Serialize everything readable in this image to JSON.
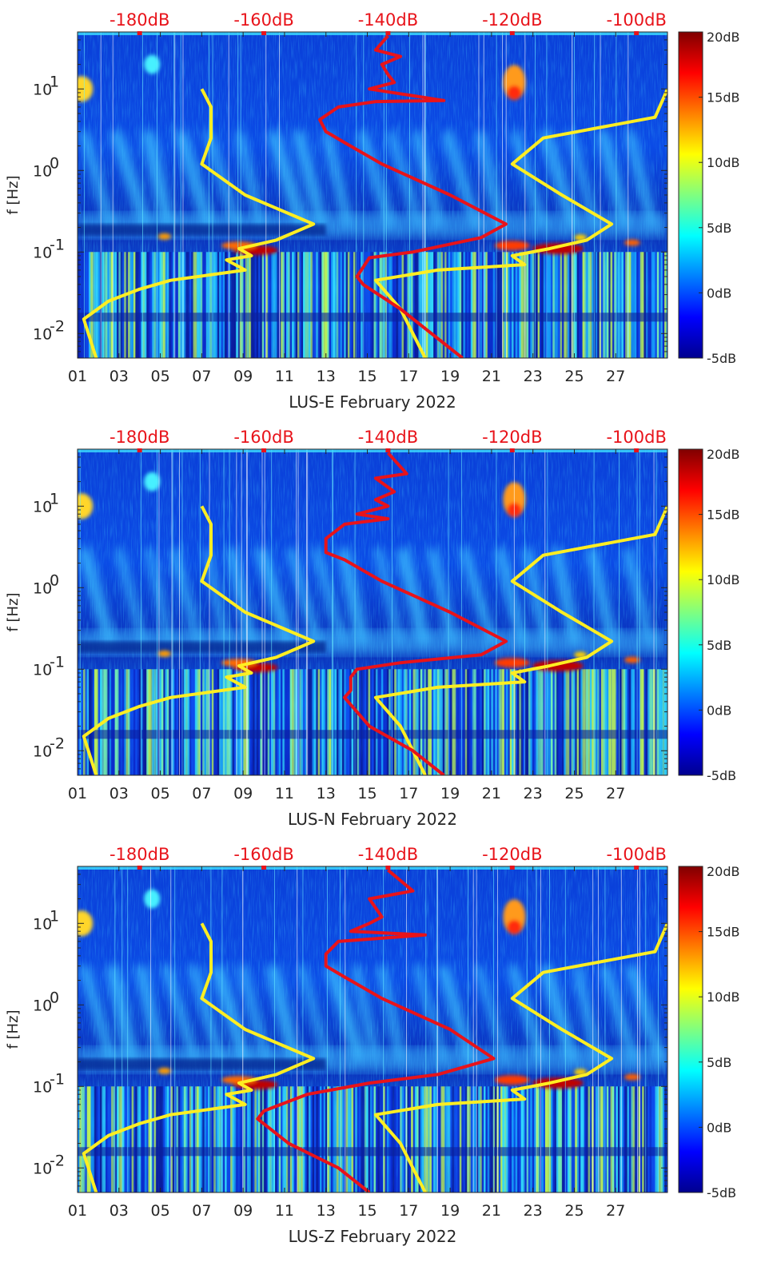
{
  "chart_data": [
    {
      "type": "heatmap",
      "station": "LUS-E",
      "xlabel": "LUS-E February 2022",
      "ylabel": "f [Hz]",
      "x_ticks": [
        "01",
        "03",
        "05",
        "07",
        "09",
        "11",
        "13",
        "15",
        "17",
        "19",
        "21",
        "23",
        "25",
        "27"
      ],
      "x_range_days": [
        1,
        29.5
      ],
      "y_scale": "log",
      "y_ticks": [
        {
          "value": 0.01,
          "base": "10",
          "exp": "-2"
        },
        {
          "value": 0.1,
          "base": "10",
          "exp": "-1"
        },
        {
          "value": 1,
          "base": "10",
          "exp": "0"
        },
        {
          "value": 10,
          "base": "10",
          "exp": "1"
        }
      ],
      "y_range_hz": [
        0.005,
        50
      ],
      "top_axis": {
        "labels": [
          "-180dB",
          "-160dB",
          "-140dB",
          "-120dB",
          "-100dB"
        ],
        "values_db": [
          -180,
          -160,
          -140,
          -120,
          -100
        ],
        "range_db": [
          -190,
          -95
        ]
      },
      "colorbar": {
        "labels": [
          "20dB",
          "15dB",
          "10dB",
          "5dB",
          "0dB",
          "-5dB"
        ],
        "values": [
          20,
          15,
          10,
          5,
          0,
          -5
        ],
        "range": [
          -5,
          20
        ],
        "colormap": "jet"
      },
      "series": [
        {
          "color": "#ffee22",
          "points": [
            [
              -170,
              10
            ],
            [
              -168.5,
              6
            ],
            [
              -168.5,
              2.5
            ],
            [
              -170,
              1.2
            ],
            [
              -163,
              0.5
            ],
            [
              -152,
              0.22
            ],
            [
              -158,
              0.14
            ],
            [
              -164,
              0.11
            ],
            [
              -162,
              0.09
            ],
            [
              -166,
              0.08
            ],
            [
              -163,
              0.06
            ],
            [
              -175,
              0.045
            ],
            [
              -180,
              0.035
            ],
            [
              -185,
              0.025
            ],
            [
              -189,
              0.015
            ],
            [
              -187,
              0.005
            ]
          ]
        },
        {
          "color": "#ffee22",
          "points": [
            [
              -95,
              10
            ],
            [
              -97,
              4.5
            ],
            [
              -115,
              2.5
            ],
            [
              -120,
              1.2
            ],
            [
              -112,
              0.5
            ],
            [
              -104,
              0.22
            ],
            [
              -108,
              0.14
            ],
            [
              -114,
              0.11
            ],
            [
              -120,
              0.09
            ],
            [
              -118,
              0.07
            ],
            [
              -132,
              0.06
            ],
            [
              -142,
              0.045
            ],
            [
              -138,
              0.02
            ],
            [
              -134,
              0.005
            ]
          ]
        },
        {
          "color": "#e8131a",
          "points": [
            [
              -140,
              45
            ],
            [
              -142,
              30
            ],
            [
              -138,
              25
            ],
            [
              -141,
              20
            ],
            [
              -140,
              15
            ],
            [
              -139,
              12
            ],
            [
              -143,
              10
            ],
            [
              -131,
              7.2
            ],
            [
              -142,
              7
            ],
            [
              -148,
              6
            ],
            [
              -151,
              4.2
            ],
            [
              -150,
              3
            ],
            [
              -147,
              2.2
            ],
            [
              -141,
              1.2
            ],
            [
              -130,
              0.5
            ],
            [
              -121,
              0.22
            ],
            [
              -125,
              0.15
            ],
            [
              -136,
              0.1
            ],
            [
              -143,
              0.085
            ],
            [
              -144,
              0.065
            ],
            [
              -145,
              0.05
            ],
            [
              -144,
              0.04
            ],
            [
              -138,
              0.02
            ],
            [
              -133,
              0.01
            ],
            [
              -128,
              0.005
            ]
          ]
        }
      ]
    },
    {
      "type": "heatmap",
      "station": "LUS-N",
      "xlabel": "LUS-N February 2022",
      "ylabel": "f [Hz]",
      "x_ticks": [
        "01",
        "03",
        "05",
        "07",
        "09",
        "11",
        "13",
        "15",
        "17",
        "19",
        "21",
        "23",
        "25",
        "27"
      ],
      "x_range_days": [
        1,
        29.5
      ],
      "y_scale": "log",
      "y_ticks": [
        {
          "value": 0.01,
          "base": "10",
          "exp": "-2"
        },
        {
          "value": 0.1,
          "base": "10",
          "exp": "-1"
        },
        {
          "value": 1,
          "base": "10",
          "exp": "0"
        },
        {
          "value": 10,
          "base": "10",
          "exp": "1"
        }
      ],
      "y_range_hz": [
        0.005,
        50
      ],
      "top_axis": {
        "labels": [
          "-180dB",
          "-160dB",
          "-140dB",
          "-120dB",
          "-100dB"
        ],
        "values_db": [
          -180,
          -160,
          -140,
          -120,
          -100
        ],
        "range_db": [
          -190,
          -95
        ]
      },
      "colorbar": {
        "labels": [
          "20dB",
          "15dB",
          "10dB",
          "5dB",
          "0dB",
          "-5dB"
        ],
        "values": [
          20,
          15,
          10,
          5,
          0,
          -5
        ],
        "range": [
          -5,
          20
        ],
        "colormap": "jet"
      },
      "series": [
        {
          "color": "#ffee22",
          "points": [
            [
              -170,
              10
            ],
            [
              -168.5,
              6
            ],
            [
              -168.5,
              2.5
            ],
            [
              -170,
              1.2
            ],
            [
              -163,
              0.5
            ],
            [
              -152,
              0.22
            ],
            [
              -158,
              0.14
            ],
            [
              -164,
              0.11
            ],
            [
              -162,
              0.09
            ],
            [
              -166,
              0.08
            ],
            [
              -163,
              0.06
            ],
            [
              -175,
              0.045
            ],
            [
              -180,
              0.035
            ],
            [
              -185,
              0.025
            ],
            [
              -189,
              0.015
            ],
            [
              -187,
              0.005
            ]
          ]
        },
        {
          "color": "#ffee22",
          "points": [
            [
              -95,
              10
            ],
            [
              -97,
              4.5
            ],
            [
              -115,
              2.5
            ],
            [
              -120,
              1.2
            ],
            [
              -112,
              0.5
            ],
            [
              -104,
              0.22
            ],
            [
              -108,
              0.14
            ],
            [
              -114,
              0.11
            ],
            [
              -120,
              0.09
            ],
            [
              -118,
              0.07
            ],
            [
              -132,
              0.06
            ],
            [
              -142,
              0.045
            ],
            [
              -138,
              0.02
            ],
            [
              -134,
              0.005
            ]
          ]
        },
        {
          "color": "#e8131a",
          "points": [
            [
              -140,
              45
            ],
            [
              -137,
              25
            ],
            [
              -142,
              22
            ],
            [
              -139,
              15
            ],
            [
              -142,
              12
            ],
            [
              -140,
              10
            ],
            [
              -145,
              8
            ],
            [
              -140,
              7
            ],
            [
              -147,
              6
            ],
            [
              -150,
              4
            ],
            [
              -150,
              2.7
            ],
            [
              -147,
              2.2
            ],
            [
              -141,
              1.2
            ],
            [
              -130,
              0.5
            ],
            [
              -121,
              0.22
            ],
            [
              -125,
              0.15
            ],
            [
              -138,
              0.12
            ],
            [
              -145,
              0.1
            ],
            [
              -146,
              0.08
            ],
            [
              -146,
              0.055
            ],
            [
              -147,
              0.045
            ],
            [
              -143,
              0.02
            ],
            [
              -136,
              0.01
            ],
            [
              -131,
              0.005
            ]
          ]
        }
      ]
    },
    {
      "type": "heatmap",
      "station": "LUS-Z",
      "xlabel": "LUS-Z February 2022",
      "ylabel": "f [Hz]",
      "x_ticks": [
        "01",
        "03",
        "05",
        "07",
        "09",
        "11",
        "13",
        "15",
        "17",
        "19",
        "21",
        "23",
        "25",
        "27"
      ],
      "x_range_days": [
        1,
        29.5
      ],
      "y_scale": "log",
      "y_ticks": [
        {
          "value": 0.01,
          "base": "10",
          "exp": "-2"
        },
        {
          "value": 0.1,
          "base": "10",
          "exp": "-1"
        },
        {
          "value": 1,
          "base": "10",
          "exp": "0"
        },
        {
          "value": 10,
          "base": "10",
          "exp": "1"
        }
      ],
      "y_range_hz": [
        0.005,
        50
      ],
      "top_axis": {
        "labels": [
          "-180dB",
          "-160dB",
          "-140dB",
          "-120dB",
          "-100dB"
        ],
        "values_db": [
          -180,
          -160,
          -140,
          -120,
          -100
        ],
        "range_db": [
          -190,
          -95
        ]
      },
      "colorbar": {
        "labels": [
          "20dB",
          "15dB",
          "10dB",
          "5dB",
          "0dB",
          "-5dB"
        ],
        "values": [
          20,
          15,
          10,
          5,
          0,
          -5
        ],
        "range": [
          -5,
          20
        ],
        "colormap": "jet"
      },
      "series": [
        {
          "color": "#ffee22",
          "points": [
            [
              -170,
              10
            ],
            [
              -168.5,
              6
            ],
            [
              -168.5,
              2.5
            ],
            [
              -170,
              1.2
            ],
            [
              -163,
              0.5
            ],
            [
              -152,
              0.22
            ],
            [
              -158,
              0.14
            ],
            [
              -164,
              0.11
            ],
            [
              -162,
              0.09
            ],
            [
              -166,
              0.08
            ],
            [
              -163,
              0.06
            ],
            [
              -175,
              0.045
            ],
            [
              -180,
              0.035
            ],
            [
              -185,
              0.025
            ],
            [
              -189,
              0.015
            ],
            [
              -187,
              0.005
            ]
          ]
        },
        {
          "color": "#ffee22",
          "points": [
            [
              -95,
              10
            ],
            [
              -97,
              4.5
            ],
            [
              -115,
              2.5
            ],
            [
              -120,
              1.2
            ],
            [
              -112,
              0.5
            ],
            [
              -104,
              0.22
            ],
            [
              -108,
              0.14
            ],
            [
              -114,
              0.11
            ],
            [
              -120,
              0.09
            ],
            [
              -118,
              0.07
            ],
            [
              -132,
              0.06
            ],
            [
              -142,
              0.045
            ],
            [
              -138,
              0.02
            ],
            [
              -134,
              0.005
            ]
          ]
        },
        {
          "color": "#e8131a",
          "points": [
            [
              -140,
              45
            ],
            [
              -136,
              25
            ],
            [
              -143,
              20
            ],
            [
              -141,
              12
            ],
            [
              -143,
              10
            ],
            [
              -146,
              8
            ],
            [
              -134,
              7.2
            ],
            [
              -148,
              6
            ],
            [
              -150,
              4.2
            ],
            [
              -150,
              3
            ],
            [
              -147,
              2.2
            ],
            [
              -141,
              1.2
            ],
            [
              -130,
              0.5
            ],
            [
              -123,
              0.22
            ],
            [
              -132,
              0.14
            ],
            [
              -143,
              0.11
            ],
            [
              -153,
              0.08
            ],
            [
              -160,
              0.05
            ],
            [
              -161,
              0.04
            ],
            [
              -156,
              0.02
            ],
            [
              -148,
              0.01
            ],
            [
              -143,
              0.005
            ]
          ]
        }
      ]
    }
  ]
}
